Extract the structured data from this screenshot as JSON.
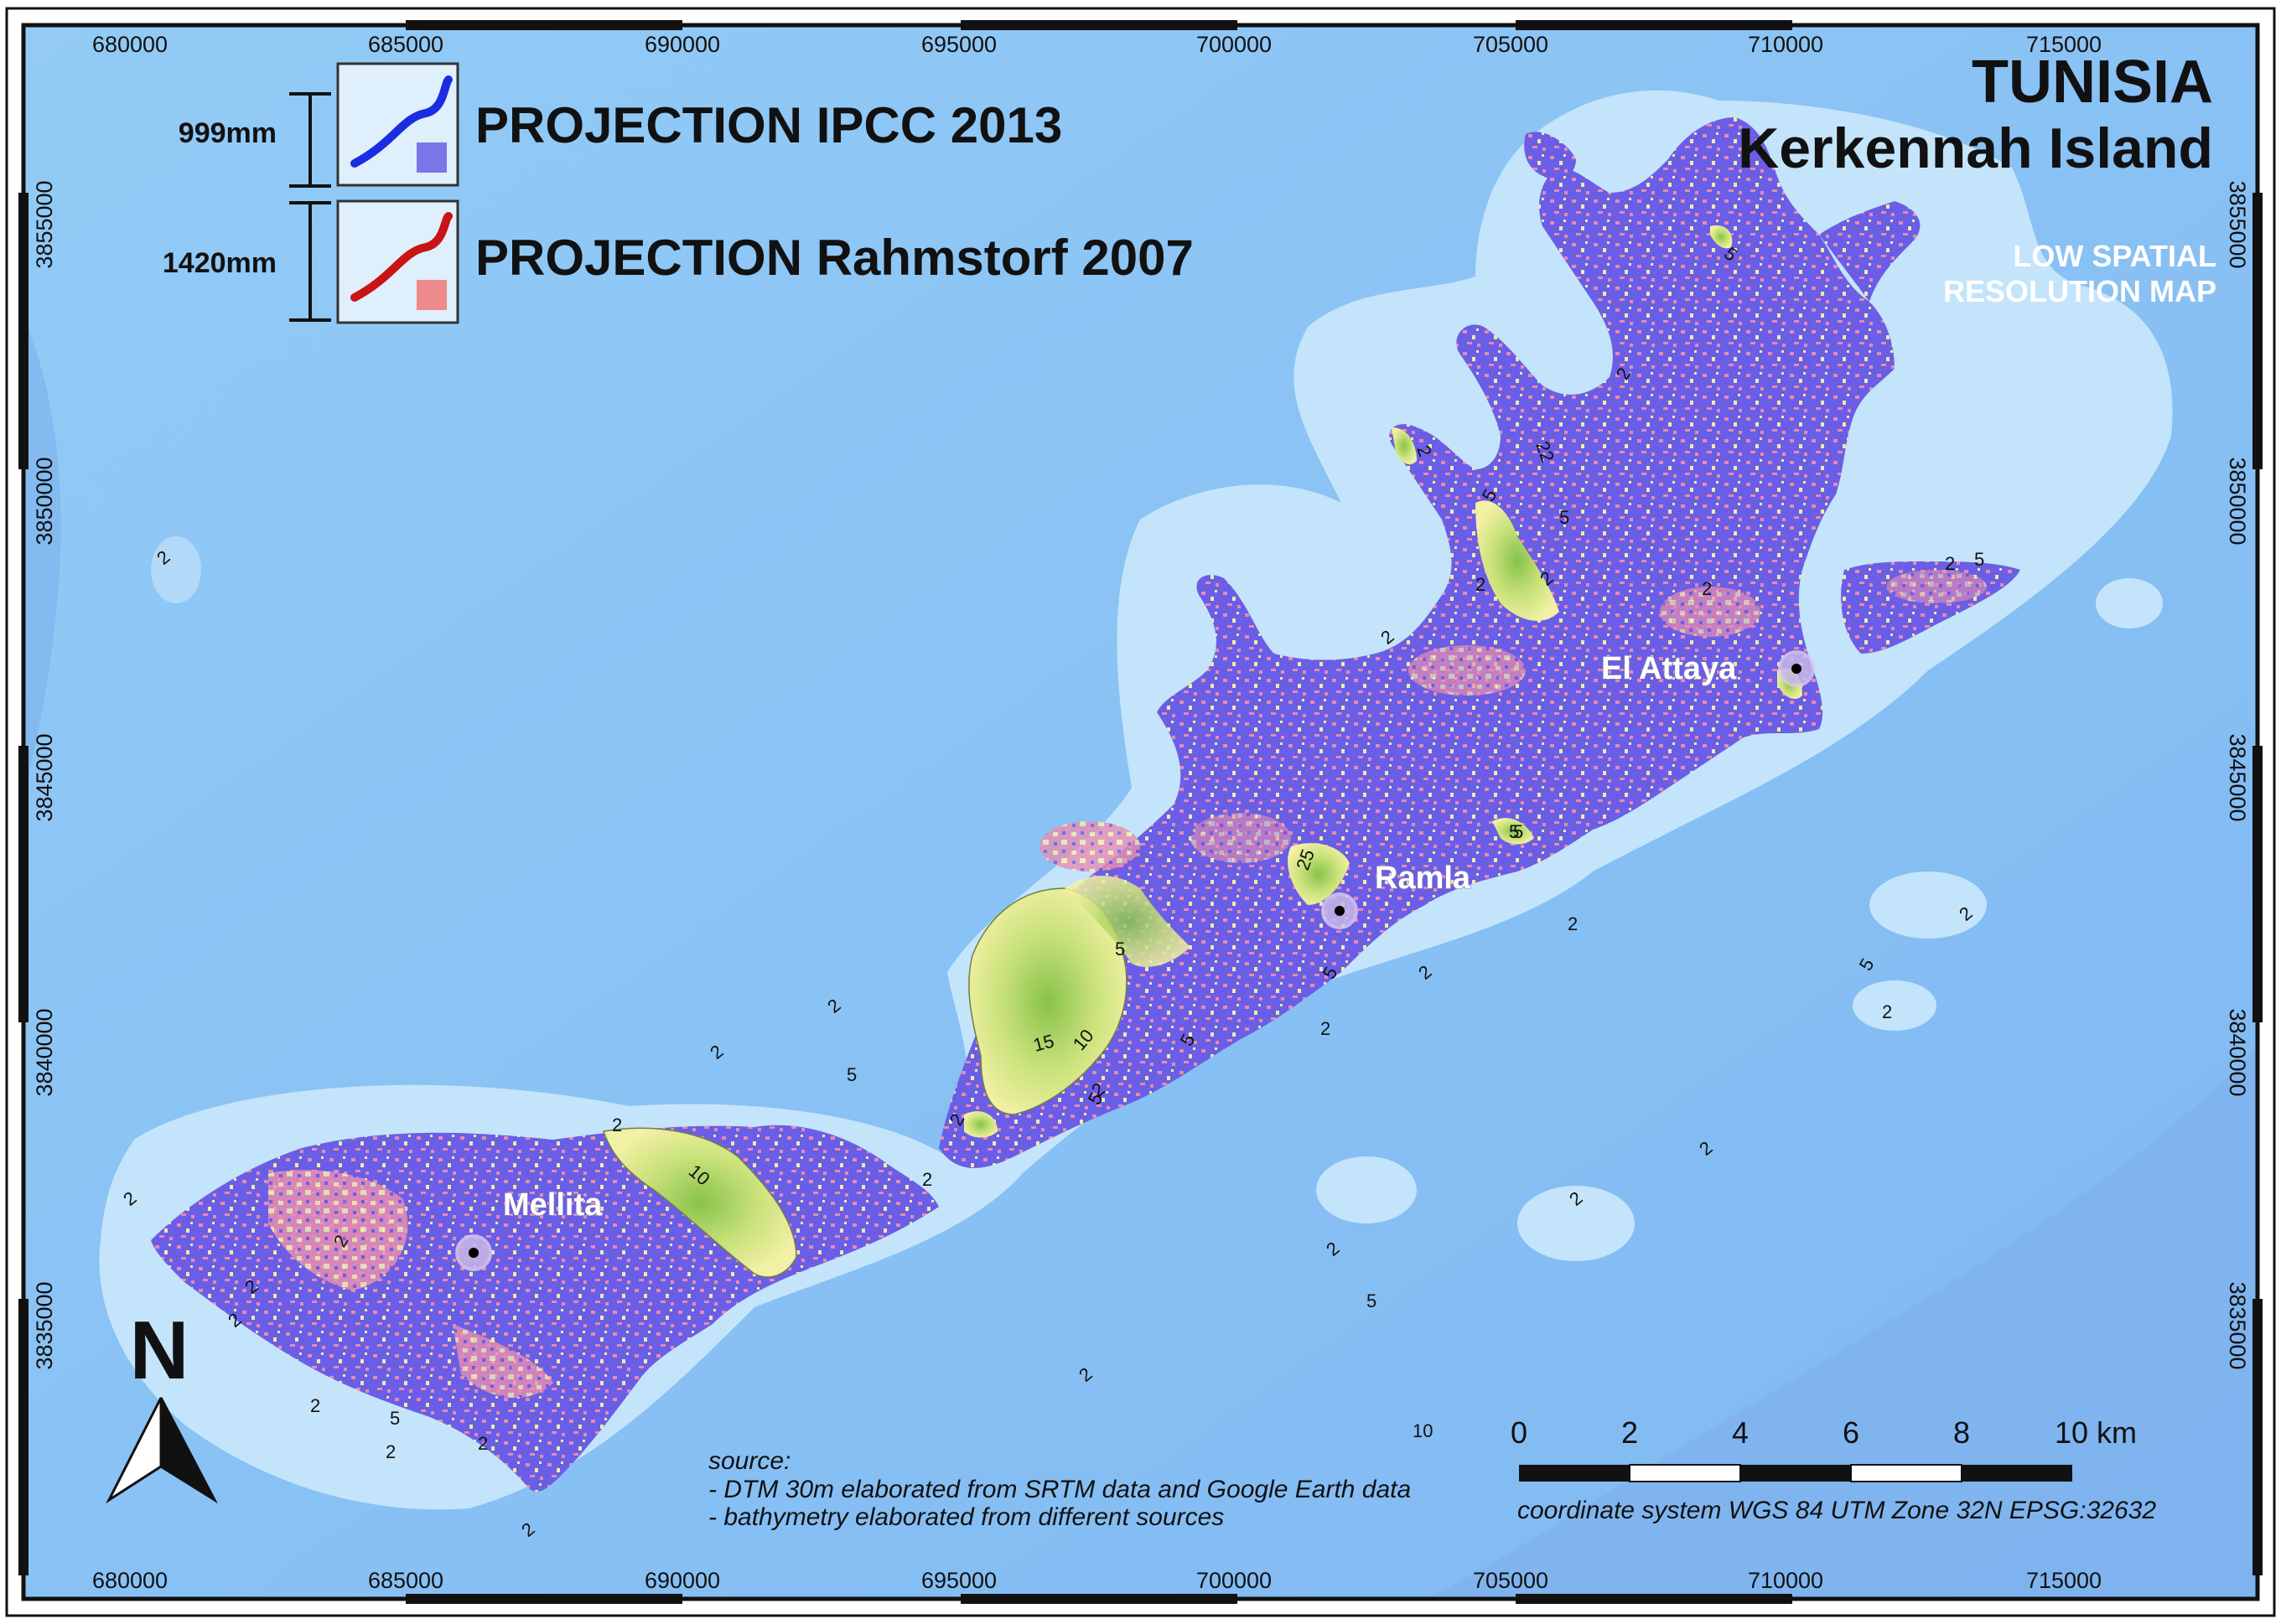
{
  "title": {
    "line1": "TUNISIA",
    "line2": "Kerkennah Island"
  },
  "map_note": {
    "line1": "LOW SPATIAL",
    "line2": "RESOLUTION MAP"
  },
  "legend": {
    "items": [
      {
        "amount": "999mm",
        "label": "PROJECTION IPCC 2013",
        "curve_color": "#1a2de0",
        "swatch_color": "#7b76e8"
      },
      {
        "amount": "1420mm",
        "label": "PROJECTION Rahmstorf 2007",
        "curve_color": "#c81414",
        "swatch_color": "#ee8a8a"
      }
    ]
  },
  "axes": {
    "x_ticks": [
      "680000",
      "685000",
      "690000",
      "695000",
      "700000",
      "705000",
      "710000",
      "715000"
    ],
    "y_ticks": [
      "3855000",
      "3850000",
      "3845000",
      "3840000",
      "3835000"
    ]
  },
  "places": [
    {
      "name": "Mellita"
    },
    {
      "name": "Ramla"
    },
    {
      "name": "El Attaya"
    }
  ],
  "contour_labels": [
    "2",
    "2",
    "2",
    "2",
    "2",
    "2",
    "2",
    "2",
    "2",
    "2",
    "2",
    "2",
    "2",
    "2",
    "2",
    "2",
    "2",
    "2",
    "2",
    "2",
    "2",
    "2",
    "5",
    "5",
    "5",
    "5",
    "5",
    "5",
    "5",
    "5",
    "5",
    "5",
    "10",
    "10",
    "15",
    "25",
    "2",
    "2",
    "2",
    "2",
    "2",
    "2",
    "5",
    "5",
    "5",
    "2",
    "22",
    "2",
    "2",
    "5",
    "10"
  ],
  "north_arrow": {
    "label": "N"
  },
  "scale_bar": {
    "labels": [
      "0",
      "2",
      "4",
      "6",
      "8",
      "10 km"
    ]
  },
  "coordinate_system": "coordinate system WGS 84 UTM Zone 32N EPSG:32632",
  "source": {
    "heading": "source:",
    "line1": "- DTM 30m elaborated from SRTM data and Google Earth data",
    "line2": "- bathymetry elaborated from different sources"
  },
  "colors": {
    "deep_sea": "#8ac4f4",
    "shallow_sea": "#c4e4fb",
    "land_flooded": "#6a5ee6",
    "land_mixed": "#e88ab0",
    "land_high": "#f2f0a0",
    "land_highest": "#9ccc5a",
    "frame": "#111111"
  }
}
